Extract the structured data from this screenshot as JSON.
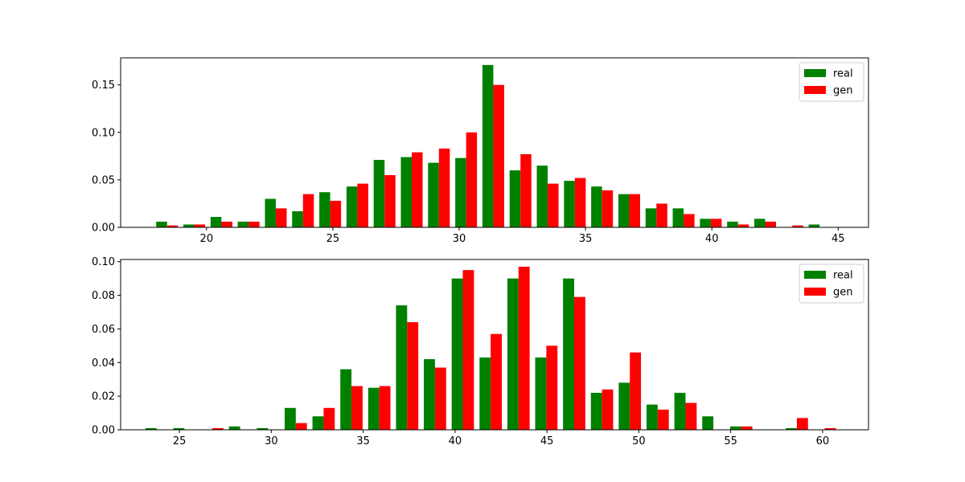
{
  "chart_data": [
    {
      "type": "bar",
      "title": "",
      "xlabel": "",
      "ylabel": "",
      "xlim": [
        16.6,
        46.2
      ],
      "ylim": [
        0,
        0.1785
      ],
      "xticks": [
        20,
        25,
        30,
        35,
        40,
        45
      ],
      "xtick_labels": [
        "20",
        "25",
        "30",
        "35",
        "40",
        "45"
      ],
      "yticks": [
        0.0,
        0.05,
        0.1,
        0.15
      ],
      "ytick_labels": [
        "0.00",
        "0.05",
        "0.10",
        "0.15"
      ],
      "bin_start": 17.9,
      "bin_width": 1.076,
      "legend": {
        "position": "top-right",
        "entries": [
          "real",
          "gen"
        ]
      },
      "series": [
        {
          "name": "real",
          "color": "#008000",
          "values": [
            0.006,
            0.003,
            0.011,
            0.006,
            0.03,
            0.017,
            0.037,
            0.043,
            0.071,
            0.074,
            0.068,
            0.073,
            0.171,
            0.06,
            0.065,
            0.049,
            0.043,
            0.035,
            0.02,
            0.02,
            0.009,
            0.006,
            0.009,
            0.0,
            0.003
          ]
        },
        {
          "name": "gen",
          "color": "#ff0000",
          "values": [
            0.002,
            0.003,
            0.006,
            0.006,
            0.02,
            0.035,
            0.028,
            0.046,
            0.055,
            0.079,
            0.083,
            0.1,
            0.15,
            0.077,
            0.046,
            0.052,
            0.039,
            0.035,
            0.025,
            0.014,
            0.009,
            0.003,
            0.006,
            0.002,
            0.0
          ]
        }
      ]
    },
    {
      "type": "bar",
      "title": "",
      "xlabel": "",
      "ylabel": "",
      "xlim": [
        21.8,
        62.5
      ],
      "ylim": [
        0,
        0.1013
      ],
      "xticks": [
        25,
        30,
        35,
        40,
        45,
        50,
        55,
        60
      ],
      "xtick_labels": [
        "25",
        "30",
        "35",
        "40",
        "45",
        "50",
        "55",
        "60"
      ],
      "yticks": [
        0.0,
        0.02,
        0.04,
        0.06,
        0.08,
        0.1
      ],
      "ytick_labels": [
        "0.00",
        "0.02",
        "0.04",
        "0.06",
        "0.08",
        "0.10"
      ],
      "bin_start": 23.0,
      "bin_width": 1.515,
      "legend": {
        "position": "top-right",
        "entries": [
          "real",
          "gen"
        ]
      },
      "series": [
        {
          "name": "real",
          "color": "#008000",
          "values": [
            0.001,
            0.001,
            0.0,
            0.002,
            0.001,
            0.013,
            0.008,
            0.036,
            0.025,
            0.074,
            0.042,
            0.09,
            0.043,
            0.09,
            0.043,
            0.09,
            0.022,
            0.028,
            0.015,
            0.022,
            0.008,
            0.002,
            0.0,
            0.001,
            0.0
          ]
        },
        {
          "name": "gen",
          "color": "#ff0000",
          "values": [
            0.0,
            0.0,
            0.001,
            0.0,
            0.0,
            0.004,
            0.013,
            0.026,
            0.026,
            0.064,
            0.037,
            0.095,
            0.057,
            0.097,
            0.05,
            0.079,
            0.024,
            0.046,
            0.012,
            0.016,
            0.0,
            0.002,
            0.0,
            0.007,
            0.001
          ]
        }
      ]
    }
  ]
}
